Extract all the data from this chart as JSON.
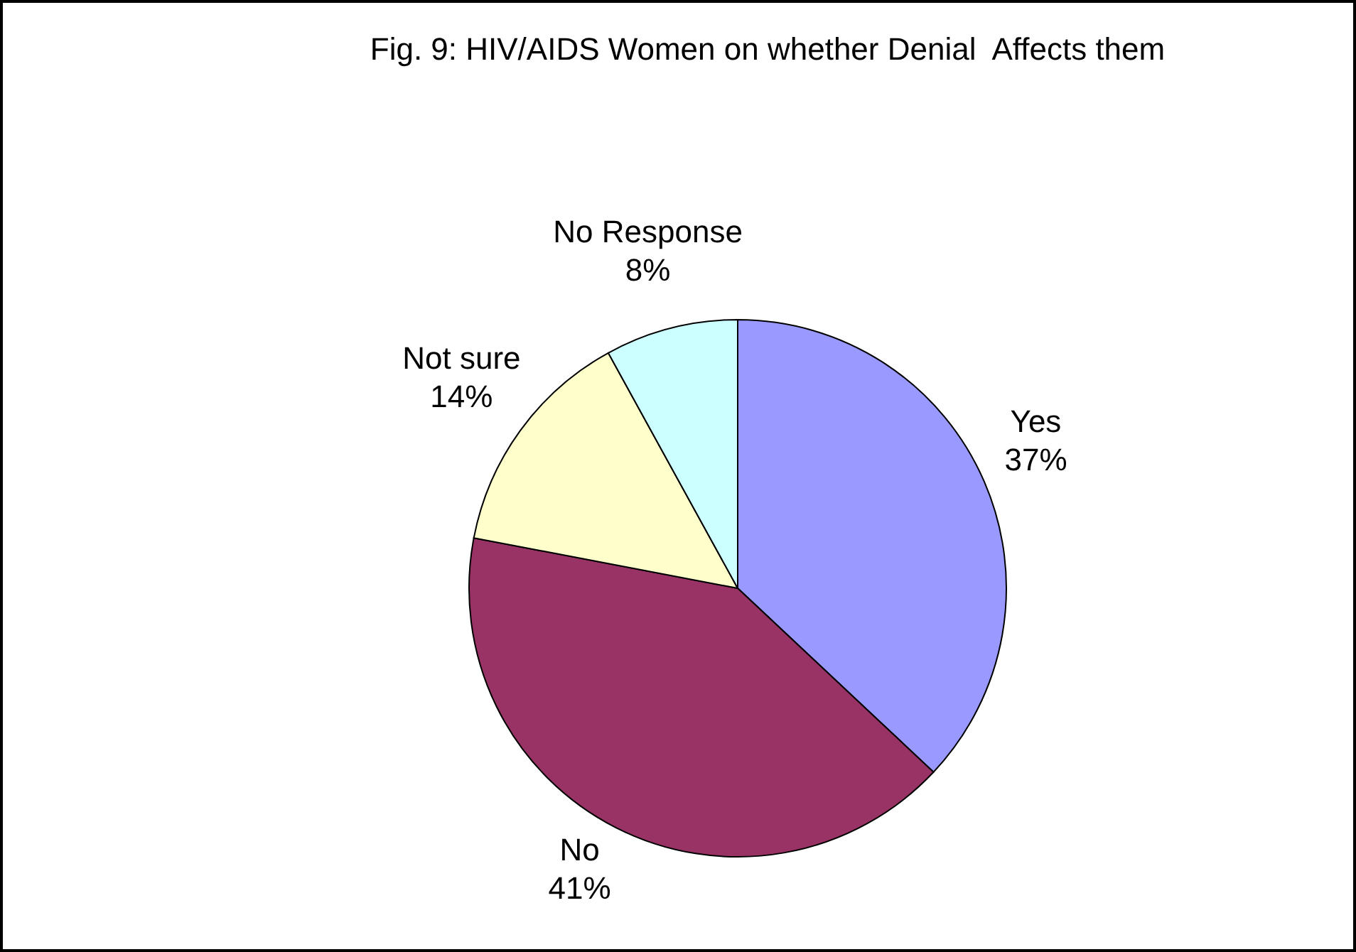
{
  "chart_data": {
    "type": "pie",
    "title": "Fig. 9: HIV/AIDS Women on whether Denial  Affects them",
    "categories": [
      "Yes",
      "No",
      "Not sure",
      "No Response"
    ],
    "values": [
      37,
      41,
      14,
      8
    ],
    "colors": [
      "#9999ff",
      "#993366",
      "#ffffcc",
      "#ccffff"
    ],
    "value_labels": [
      "37%",
      "41%",
      "14%",
      "8%"
    ],
    "legend": false
  }
}
